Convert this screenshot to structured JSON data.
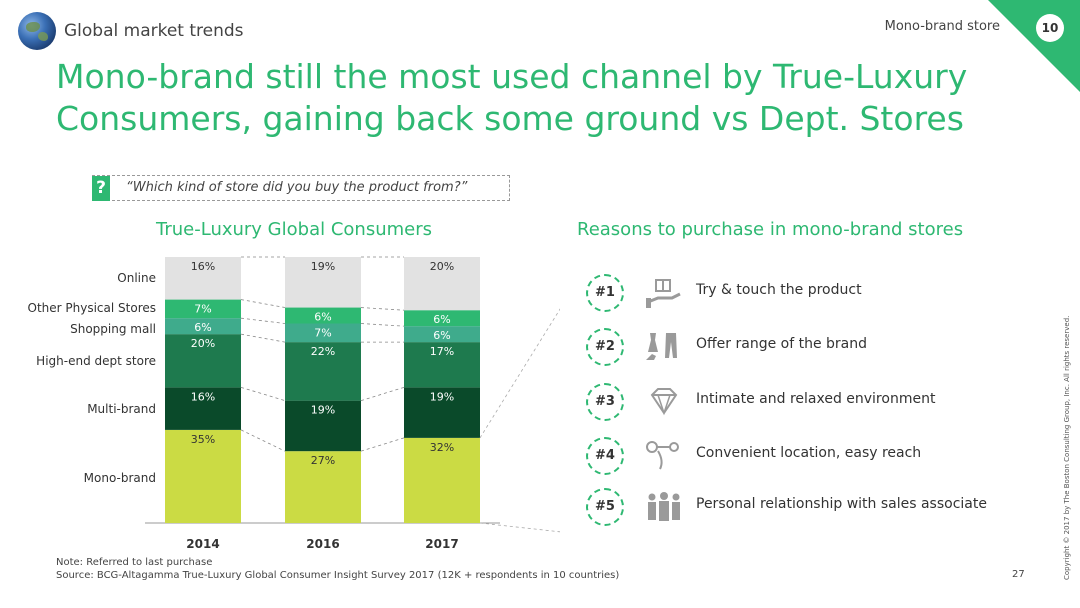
{
  "header": {
    "section_label": "Global market trends",
    "store_label": "Mono-brand store",
    "page_number": "10"
  },
  "title": "Mono-brand still the most used channel by True-Luxury Consumers, gaining back some ground vs Dept. Stores",
  "question": {
    "mark": "?",
    "text": "“Which kind of store did you buy the product from?”"
  },
  "chart_title": "True-Luxury Global Consumers",
  "chart_data": {
    "type": "bar",
    "stacked": true,
    "categories": [
      "2014",
      "2016",
      "2017"
    ],
    "series": [
      {
        "name": "Mono-brand",
        "values": [
          35,
          27,
          32
        ],
        "color": "#cbdb44",
        "labels": [
          "35%",
          "27%",
          "32%"
        ],
        "label_color": "#333333"
      },
      {
        "name": "Multi-brand",
        "values": [
          16,
          19,
          19
        ],
        "color": "#0a4a2a",
        "labels": [
          "16%",
          "19%",
          "19%"
        ],
        "label_color": "#ffffff"
      },
      {
        "name": "High-end dept store",
        "values": [
          20,
          22,
          17
        ],
        "color": "#1e7a4e",
        "labels": [
          "20%",
          "22%",
          "17%"
        ],
        "label_color": "#ffffff"
      },
      {
        "name": "Shopping mall",
        "values": [
          6,
          7,
          6
        ],
        "color": "#3fab8c",
        "labels": [
          "6%",
          "7%",
          "6%"
        ],
        "label_color": "#ffffff"
      },
      {
        "name": "Other Physical Stores",
        "values": [
          7,
          6,
          6
        ],
        "color": "#2eb872",
        "labels": [
          "7%",
          "6%",
          "6%"
        ],
        "label_color": "#ffffff"
      },
      {
        "name": "Online",
        "values": [
          16,
          19,
          20
        ],
        "color": "#e2e2e2",
        "labels": [
          "16%",
          "19%",
          "20%"
        ],
        "label_color": "#333333"
      }
    ],
    "ylim": [
      0,
      100
    ],
    "title": "True-Luxury Global Consumers",
    "xlabel": "",
    "ylabel": ""
  },
  "reasons": {
    "title": "Reasons to purchase in mono-brand stores",
    "items": [
      {
        "rank": "#1",
        "icon": "gift-hand-icon",
        "text": "Try & touch the product"
      },
      {
        "rank": "#2",
        "icon": "clothing-icon",
        "text": "Offer range of the brand"
      },
      {
        "rank": "#3",
        "icon": "diamond-icon",
        "text": "Intimate and relaxed environment"
      },
      {
        "rank": "#4",
        "icon": "route-icon",
        "text": "Convenient location, easy reach"
      },
      {
        "rank": "#5",
        "icon": "people-icon",
        "text": "Personal relationship with sales associate"
      }
    ]
  },
  "footer": {
    "note": "Note: Referred to last purchase",
    "source": "Source: BCG-Altagamma True-Luxury Global Consumer Insight Survey 2017 (12K + respondents in 10 countries)",
    "slide_number": "27",
    "copyright": "Copyright © 2017 by The Boston Consulting Group, Inc. All rights reserved."
  }
}
